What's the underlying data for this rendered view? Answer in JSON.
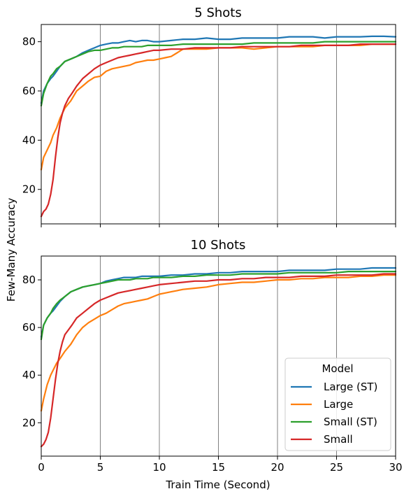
{
  "figure": {
    "ylabel": "Few-Many Accuracy",
    "xlabel": "Train Time (Second)"
  },
  "colors": {
    "large_st": "#1f77b4",
    "large": "#ff7f0e",
    "small_st": "#2ca02c",
    "small": "#d62728",
    "vline": "#808080",
    "axes": "#000000"
  },
  "legend": {
    "title": "Model",
    "placement": "lower right of bottom panel",
    "entries": [
      "Large (ST)",
      "Large",
      "Small (ST)",
      "Small"
    ]
  },
  "chart_data": [
    {
      "type": "line",
      "title": "5 Shots",
      "xlabel": "",
      "ylabel": "Few-Many Accuracy",
      "xlim": [
        0,
        30
      ],
      "ylim": [
        6,
        87
      ],
      "xticks": [
        0,
        5,
        10,
        15,
        20,
        25,
        30
      ],
      "yticks": [
        20,
        40,
        60,
        80
      ],
      "x_ticklabels_visible": false,
      "vlines": [
        5,
        10,
        15,
        20,
        25
      ],
      "series": [
        {
          "name": "Large (ST)",
          "x": [
            0,
            0.2,
            0.5,
            0.8,
            1,
            1.3,
            1.6,
            2,
            2.5,
            3,
            3.5,
            4,
            4.5,
            5,
            5.5,
            6,
            6.5,
            7,
            7.5,
            8,
            8.5,
            9,
            9.5,
            10,
            11,
            12,
            13,
            14,
            15,
            16,
            17,
            18,
            19,
            20,
            21,
            22,
            23,
            24,
            25,
            26,
            27,
            28,
            29,
            30
          ],
          "y": [
            55,
            60,
            63,
            65,
            66,
            68,
            70,
            72,
            73,
            74,
            75.5,
            76.5,
            77.5,
            78.5,
            79,
            79.5,
            79.5,
            80,
            80.5,
            80,
            80.5,
            80.5,
            80,
            80,
            80.5,
            81,
            81,
            81.5,
            81,
            81,
            81.5,
            81.5,
            81.5,
            81.5,
            82,
            82,
            82,
            81.5,
            82,
            82,
            82,
            82.2,
            82.2,
            82
          ]
        },
        {
          "name": "Large",
          "x": [
            0,
            0.2,
            0.5,
            0.8,
            1,
            1.3,
            1.6,
            2,
            2.5,
            3,
            3.5,
            4,
            4.5,
            5,
            5.5,
            6,
            6.5,
            7,
            7.5,
            8,
            8.5,
            9,
            9.5,
            10,
            10.5,
            11,
            11.5,
            12,
            13,
            14,
            15,
            16,
            17,
            18,
            19,
            20,
            21,
            22,
            23,
            24,
            25,
            26,
            27,
            28,
            29,
            30
          ],
          "y": [
            28,
            33,
            36,
            39,
            42,
            45,
            49,
            53,
            56,
            60,
            62,
            64,
            65.5,
            66,
            68,
            69,
            69.5,
            70,
            70.5,
            71.5,
            72,
            72.5,
            72.5,
            73,
            73.5,
            74,
            75.5,
            77,
            77,
            77,
            77.5,
            77.5,
            77.5,
            77,
            77.5,
            78,
            78,
            78,
            78,
            78.5,
            78.5,
            78.5,
            78.5,
            79,
            79,
            79
          ]
        },
        {
          "name": "Small (ST)",
          "x": [
            0,
            0.2,
            0.5,
            0.8,
            1,
            1.3,
            1.6,
            2,
            2.5,
            3,
            3.5,
            4,
            4.5,
            5,
            5.5,
            6,
            6.5,
            7,
            7.5,
            8,
            8.5,
            9,
            9.5,
            10,
            11,
            12,
            13,
            14,
            15,
            16,
            17,
            18,
            19,
            20,
            21,
            22,
            23,
            24,
            25,
            26,
            27,
            28,
            29,
            30
          ],
          "y": [
            54,
            59,
            63,
            66,
            67,
            69,
            70,
            72,
            73,
            74,
            75,
            76,
            76.5,
            76.5,
            77,
            77.5,
            77.5,
            78,
            78,
            78,
            78,
            78.5,
            78.5,
            78.5,
            78.5,
            79,
            79,
            79,
            79,
            79,
            79,
            79.5,
            79.5,
            79.5,
            79.5,
            79.5,
            79.5,
            80,
            80,
            80,
            80,
            80,
            80,
            80
          ]
        },
        {
          "name": "Small",
          "x": [
            0,
            0.2,
            0.4,
            0.6,
            0.8,
            1,
            1.2,
            1.4,
            1.6,
            1.8,
            2,
            2.3,
            2.6,
            3,
            3.5,
            4,
            4.5,
            5,
            5.5,
            6,
            6.5,
            7,
            7.5,
            8,
            8.5,
            9,
            9.5,
            10,
            11,
            12,
            13,
            14,
            15,
            16,
            17,
            18,
            19,
            20,
            21,
            22,
            23,
            24,
            25,
            26,
            27,
            28,
            29,
            30
          ],
          "y": [
            9,
            11,
            12,
            14,
            18,
            24,
            33,
            41,
            47,
            51,
            54,
            57,
            59,
            62,
            65,
            67,
            69,
            70.5,
            71.5,
            72.5,
            73.5,
            74,
            74.5,
            75,
            75.5,
            76,
            76.5,
            76.5,
            77,
            77,
            77.5,
            77.5,
            77.5,
            77.5,
            78,
            78,
            78,
            78,
            78,
            78.5,
            78.5,
            78.5,
            78.5,
            78.5,
            79,
            79,
            79,
            79
          ]
        }
      ]
    },
    {
      "type": "line",
      "title": "10 Shots",
      "xlabel": "Train Time (Second)",
      "ylabel": "Few-Many Accuracy",
      "xlim": [
        0,
        30
      ],
      "ylim": [
        6,
        90
      ],
      "xticks": [
        0,
        5,
        10,
        15,
        20,
        25,
        30
      ],
      "yticks": [
        20,
        40,
        60,
        80
      ],
      "x_ticklabels_visible": true,
      "vlines": [
        5,
        10,
        15,
        20,
        25
      ],
      "series": [
        {
          "name": "Large (ST)",
          "x": [
            0,
            0.2,
            0.5,
            0.8,
            1,
            1.3,
            1.6,
            2,
            2.5,
            3,
            3.5,
            4,
            4.5,
            5,
            5.5,
            6,
            6.5,
            7,
            7.5,
            8,
            8.5,
            9,
            9.5,
            10,
            11,
            12,
            13,
            14,
            15,
            16,
            17,
            18,
            19,
            20,
            21,
            22,
            23,
            24,
            25,
            26,
            27,
            28,
            29,
            30
          ],
          "y": [
            56,
            61,
            64,
            66,
            67,
            69,
            71,
            73,
            75,
            76,
            77,
            77.5,
            78,
            78.5,
            79.5,
            80,
            80.5,
            81,
            81,
            81,
            81.5,
            81.5,
            81.5,
            81.5,
            82,
            82,
            82.5,
            82.5,
            83,
            83,
            83.5,
            83.5,
            83.5,
            83.5,
            84,
            84,
            84,
            84,
            84.5,
            84.5,
            84.5,
            85,
            85,
            85
          ]
        },
        {
          "name": "Large",
          "x": [
            0,
            0.2,
            0.5,
            0.8,
            1,
            1.3,
            1.6,
            2,
            2.5,
            3,
            3.5,
            4,
            4.5,
            5,
            5.5,
            6,
            6.5,
            7,
            7.5,
            8,
            8.5,
            9,
            9.5,
            10,
            10.5,
            11,
            11.5,
            12,
            13,
            14,
            15,
            16,
            17,
            18,
            19,
            20,
            21,
            22,
            23,
            24,
            25,
            26,
            27,
            28,
            29,
            30
          ],
          "y": [
            25,
            30,
            36,
            40,
            42,
            45,
            47,
            50,
            53,
            57,
            60,
            62,
            63.5,
            65,
            66,
            67.5,
            69,
            70,
            70.5,
            71,
            71.5,
            72,
            73,
            74,
            74.5,
            75,
            75.5,
            76,
            76.5,
            77,
            78,
            78.5,
            79,
            79,
            79.5,
            80,
            80,
            80.5,
            80.5,
            81,
            81,
            81,
            81.5,
            81.5,
            82,
            82
          ]
        },
        {
          "name": "Small (ST)",
          "x": [
            0,
            0.2,
            0.5,
            0.8,
            1,
            1.3,
            1.6,
            2,
            2.5,
            3,
            3.5,
            4,
            4.5,
            5,
            5.5,
            6,
            6.5,
            7,
            7.5,
            8,
            8.5,
            9,
            9.5,
            10,
            11,
            12,
            13,
            14,
            15,
            16,
            17,
            18,
            19,
            20,
            21,
            22,
            23,
            24,
            25,
            26,
            27,
            28,
            29,
            30
          ],
          "y": [
            55,
            61,
            64,
            66,
            68,
            70,
            71.5,
            73,
            75,
            76,
            77,
            77.5,
            78,
            78.5,
            79,
            79.5,
            80,
            80,
            80,
            80.5,
            80.5,
            80.5,
            81,
            81,
            81,
            81.5,
            81.5,
            82,
            82,
            82,
            82.5,
            82.5,
            82.5,
            82.5,
            83,
            83,
            83,
            83,
            83,
            83.5,
            83.5,
            83.5,
            83.5,
            83.5
          ]
        },
        {
          "name": "Small",
          "x": [
            0,
            0.2,
            0.4,
            0.6,
            0.8,
            1,
            1.2,
            1.4,
            1.6,
            1.8,
            2,
            2.3,
            2.6,
            3,
            3.5,
            4,
            4.5,
            5,
            5.5,
            6,
            6.5,
            7,
            7.5,
            8,
            8.5,
            9,
            9.5,
            10,
            11,
            12,
            13,
            14,
            15,
            16,
            17,
            18,
            19,
            20,
            21,
            22,
            23,
            24,
            25,
            26,
            27,
            28,
            29,
            30
          ],
          "y": [
            10,
            11,
            13,
            16,
            22,
            30,
            38,
            45,
            50,
            54,
            57,
            59,
            61,
            64,
            66,
            68,
            70,
            71.5,
            72.5,
            73.5,
            74.5,
            75,
            75.5,
            76,
            76.5,
            77,
            77.5,
            78,
            78.5,
            79,
            79.5,
            79.5,
            80,
            80,
            80.5,
            80.5,
            81,
            81,
            81,
            81.5,
            81.5,
            81.5,
            82,
            82,
            82,
            82,
            82.5,
            82.5
          ]
        }
      ]
    }
  ]
}
